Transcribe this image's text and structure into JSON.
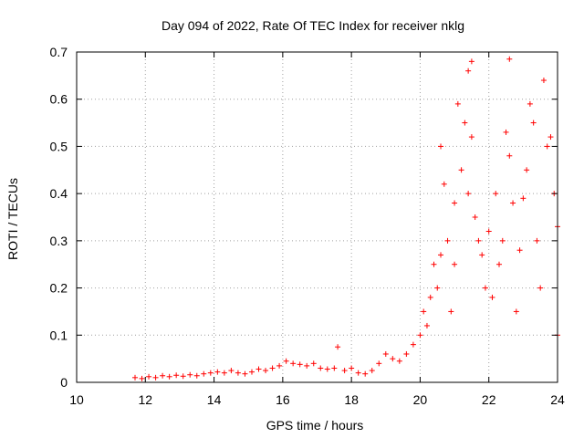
{
  "chart_data": {
    "type": "scatter",
    "title": "Day 094 of 2022, Rate Of TEC Index for receiver nklg",
    "xlabel": "GPS time / hours",
    "ylabel": "ROTI / TECUs",
    "xlim": [
      10,
      24
    ],
    "ylim": [
      0,
      0.7
    ],
    "xticks": [
      "10",
      "12",
      "14",
      "16",
      "18",
      "20",
      "22",
      "24"
    ],
    "yticks": [
      "0",
      "0.1",
      "0.2",
      "0.3",
      "0.4",
      "0.5",
      "0.6",
      "0.7"
    ],
    "grid": true,
    "marker": "+",
    "color": "#ff0000",
    "series": [
      {
        "values": [
          [
            11.7,
            0.01
          ],
          [
            11.9,
            0.008
          ],
          [
            12.1,
            0.012
          ],
          [
            12.3,
            0.01
          ],
          [
            12.5,
            0.014
          ],
          [
            12.7,
            0.012
          ],
          [
            12.9,
            0.015
          ],
          [
            13.1,
            0.013
          ],
          [
            13.3,
            0.016
          ],
          [
            13.5,
            0.014
          ],
          [
            13.7,
            0.018
          ],
          [
            13.9,
            0.02
          ],
          [
            14.1,
            0.022
          ],
          [
            14.3,
            0.02
          ],
          [
            14.5,
            0.025
          ],
          [
            14.7,
            0.02
          ],
          [
            14.9,
            0.018
          ],
          [
            15.1,
            0.022
          ],
          [
            15.3,
            0.028
          ],
          [
            15.5,
            0.025
          ],
          [
            15.7,
            0.03
          ],
          [
            15.9,
            0.035
          ],
          [
            16.1,
            0.045
          ],
          [
            16.3,
            0.04
          ],
          [
            16.5,
            0.038
          ],
          [
            16.7,
            0.035
          ],
          [
            16.9,
            0.04
          ],
          [
            17.1,
            0.03
          ],
          [
            17.3,
            0.028
          ],
          [
            17.5,
            0.03
          ],
          [
            17.6,
            0.075
          ],
          [
            17.8,
            0.025
          ],
          [
            18.0,
            0.03
          ],
          [
            18.2,
            0.02
          ],
          [
            18.4,
            0.018
          ],
          [
            18.6,
            0.025
          ],
          [
            18.8,
            0.04
          ],
          [
            19.0,
            0.06
          ],
          [
            19.2,
            0.05
          ],
          [
            19.4,
            0.045
          ],
          [
            19.6,
            0.06
          ],
          [
            19.8,
            0.08
          ],
          [
            20.0,
            0.1
          ],
          [
            20.1,
            0.15
          ],
          [
            20.2,
            0.12
          ],
          [
            20.3,
            0.18
          ],
          [
            20.4,
            0.25
          ],
          [
            20.5,
            0.2
          ],
          [
            20.6,
            0.27
          ],
          [
            20.6,
            0.5
          ],
          [
            20.7,
            0.42
          ],
          [
            20.8,
            0.3
          ],
          [
            20.9,
            0.15
          ],
          [
            21.0,
            0.38
          ],
          [
            21.0,
            0.25
          ],
          [
            21.1,
            0.59
          ],
          [
            21.2,
            0.45
          ],
          [
            21.3,
            0.55
          ],
          [
            21.4,
            0.66
          ],
          [
            21.4,
            0.4
          ],
          [
            21.5,
            0.68
          ],
          [
            21.5,
            0.52
          ],
          [
            21.6,
            0.35
          ],
          [
            21.7,
            0.3
          ],
          [
            21.8,
            0.27
          ],
          [
            21.9,
            0.2
          ],
          [
            22.0,
            0.32
          ],
          [
            22.1,
            0.18
          ],
          [
            22.2,
            0.4
          ],
          [
            22.3,
            0.25
          ],
          [
            22.4,
            0.3
          ],
          [
            22.5,
            0.53
          ],
          [
            22.6,
            0.48
          ],
          [
            22.6,
            0.685
          ],
          [
            22.7,
            0.38
          ],
          [
            22.8,
            0.15
          ],
          [
            22.9,
            0.28
          ],
          [
            23.0,
            0.39
          ],
          [
            23.1,
            0.45
          ],
          [
            23.2,
            0.59
          ],
          [
            23.3,
            0.55
          ],
          [
            23.4,
            0.3
          ],
          [
            23.5,
            0.2
          ],
          [
            23.6,
            0.64
          ],
          [
            23.7,
            0.5
          ],
          [
            23.8,
            0.52
          ],
          [
            23.9,
            0.4
          ],
          [
            24.0,
            0.33
          ],
          [
            24.0,
            0.1
          ]
        ]
      }
    ]
  }
}
